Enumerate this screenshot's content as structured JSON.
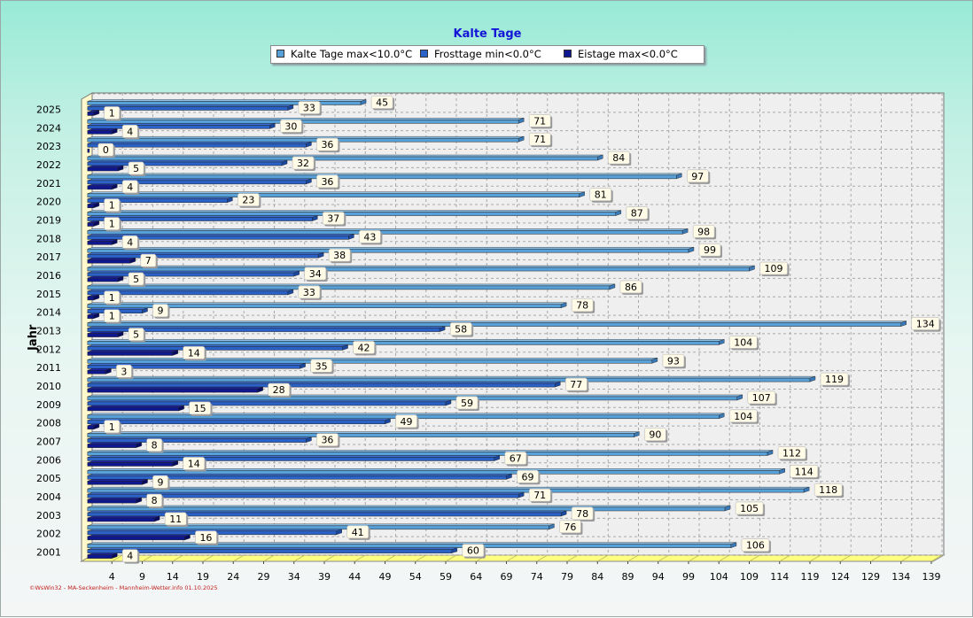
{
  "chart_data": {
    "type": "bar",
    "orientation": "horizontal",
    "title": "Kalte Tage",
    "ylabel": "Jahr",
    "xlabel": "",
    "xlim": [
      -1,
      139
    ],
    "x_ticks": [
      4,
      9,
      14,
      19,
      24,
      29,
      34,
      39,
      44,
      49,
      54,
      59,
      64,
      69,
      74,
      79,
      84,
      89,
      94,
      99,
      104,
      109,
      114,
      119,
      124,
      129,
      134,
      139
    ],
    "grid": true,
    "legend_position": "top-center",
    "categories": [
      "2025",
      "2024",
      "2023",
      "2022",
      "2021",
      "2020",
      "2019",
      "2018",
      "2017",
      "2016",
      "2015",
      "2014",
      "2013",
      "2012",
      "2011",
      "2010",
      "2009",
      "2008",
      "2007",
      "2006",
      "2005",
      "2004",
      "2003",
      "2002",
      "2001"
    ],
    "series": [
      {
        "name": "Kalte Tage max<10.0°C",
        "color": "#58a0d8",
        "values": [
          45,
          71,
          71,
          84,
          97,
          81,
          87,
          98,
          99,
          109,
          86,
          78,
          134,
          104,
          93,
          119,
          107,
          104,
          90,
          112,
          114,
          118,
          105,
          76,
          106
        ]
      },
      {
        "name": "Frosttage min<0.0°C",
        "color": "#2a62c8",
        "values": [
          33,
          30,
          36,
          32,
          36,
          23,
          37,
          43,
          38,
          34,
          33,
          9,
          58,
          42,
          35,
          77,
          59,
          49,
          36,
          67,
          69,
          71,
          78,
          41,
          60
        ]
      },
      {
        "name": "Eistage max<0.0°C",
        "color": "#101890",
        "values": [
          1,
          4,
          0,
          5,
          4,
          1,
          1,
          4,
          7,
          5,
          1,
          1,
          5,
          14,
          3,
          28,
          15,
          1,
          8,
          14,
          9,
          8,
          11,
          16,
          4
        ]
      }
    ]
  },
  "credit": "©WsWin32 - MA-Seckenheim - Mannheim-Wetter.info 01.10.2025"
}
